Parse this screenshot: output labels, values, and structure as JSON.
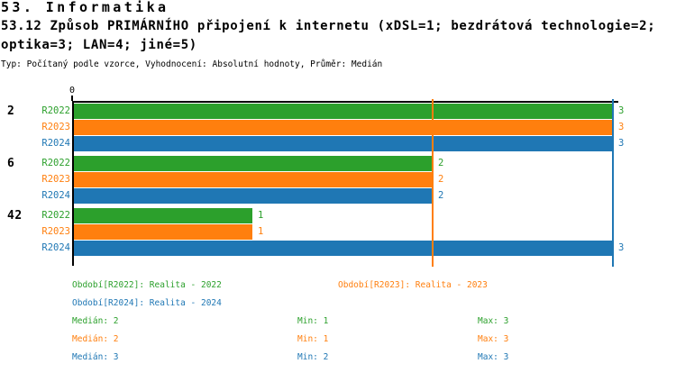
{
  "header": {
    "section_title": "53. Informatika",
    "question_title_line1": "53.12 Způsob PRIMÁRNÍHO připojení k internetu (xDSL=1; bezdrátová technologie=2;",
    "question_title_line2": "optika=3; LAN=4; jiné=5)",
    "meta": "Typ: Počítaný podle vzorce, Vyhodnocení: Absolutní hodnoty, Průměr: Medián"
  },
  "chart_data": {
    "type": "bar",
    "orientation": "horizontal",
    "title": "53.12 Způsob PRIMÁRNÍHO připojení k internetu (xDSL=1; bezdrátová technologie=2; optika=3; LAN=4; jiné=5)",
    "categories": [
      "2",
      "6",
      "42"
    ],
    "series": [
      {
        "name": "R2022",
        "color": "#2ca02c",
        "values": [
          3,
          2,
          1
        ],
        "median": 2,
        "min": 1,
        "max": 3
      },
      {
        "name": "R2023",
        "color": "#ff7f0e",
        "values": [
          3,
          2,
          1
        ],
        "median": 2,
        "min": 1,
        "max": 3
      },
      {
        "name": "R2024",
        "color": "#1f77b4",
        "values": [
          3,
          2,
          3
        ],
        "median": 3,
        "min": 2,
        "max": 3
      }
    ],
    "xlim": [
      0,
      3
    ],
    "x_ticks": [
      "0"
    ],
    "grid": false,
    "axis_color": "#000000",
    "legend_position": "bottom",
    "legend": {
      "period_labels": [
        {
          "text": "Období[R2022]: Realita - 2022",
          "color": "#2ca02c"
        },
        {
          "text": "Období[R2023]: Realita - 2023",
          "color": "#ff7f0e"
        },
        {
          "text": "Období[R2024]: Realita - 2024",
          "color": "#1f77b4"
        }
      ],
      "stats": [
        {
          "median": "Medián: 2",
          "min": "Min: 1",
          "max": "Max: 3",
          "color": "#2ca02c"
        },
        {
          "median": "Medián: 2",
          "min": "Min: 1",
          "max": "Max: 3",
          "color": "#ff7f0e"
        },
        {
          "median": "Medián: 3",
          "min": "Min: 2",
          "max": "Max: 3",
          "color": "#1f77b4"
        }
      ]
    }
  }
}
